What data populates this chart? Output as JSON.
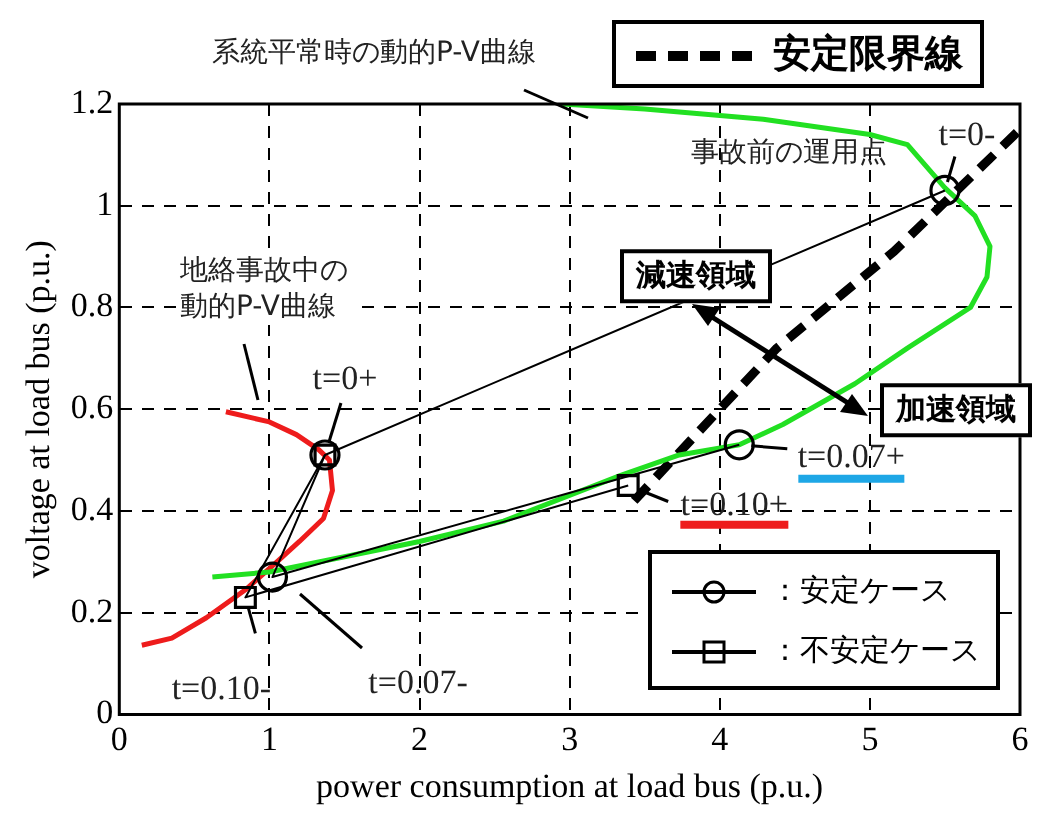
{
  "chart_data": {
    "type": "line",
    "xlabel": "power consumption at load bus (p.u.)",
    "ylabel": "voltage at load bus (p.u.)",
    "xlim": [
      0,
      6
    ],
    "xticks": [
      0,
      1,
      2,
      3,
      4,
      5,
      6
    ],
    "ylim": [
      0,
      1.2
    ],
    "yticks": [
      0,
      0.2,
      0.4,
      0.6,
      0.8,
      1,
      1.2
    ],
    "grid": true,
    "legend": "top right",
    "series": [
      {
        "color": "#22e022",
        "x": [
          2.95,
          3.5,
          4.29,
          5.0,
          5.25,
          5.5,
          5.7,
          5.8,
          5.78,
          5.67,
          5.25,
          4.9,
          4.42,
          4.13,
          3.73,
          3.34,
          2.56,
          2.0,
          1.5,
          1.0,
          0.62
        ],
        "values": [
          1.2,
          1.19,
          1.17,
          1.14,
          1.12,
          1.035,
          0.98,
          0.92,
          0.86,
          0.8,
          0.72,
          0.65,
          0.57,
          0.53,
          0.51,
          0.47,
          0.38,
          0.34,
          0.31,
          0.28,
          0.27
        ]
      },
      {
        "color": "#ee1c1c",
        "x": [
          0.71,
          1.0,
          1.18,
          1.33,
          1.4,
          1.42,
          1.36,
          1.2,
          1.05,
          0.84,
          0.58,
          0.35,
          0.15
        ],
        "values": [
          0.595,
          0.575,
          0.55,
          0.52,
          0.5,
          0.44,
          0.385,
          0.34,
          0.3,
          0.245,
          0.19,
          0.15,
          0.136
        ]
      },
      {
        "name": "安定限界線",
        "color": "#000000",
        "line_style": "dashed",
        "marker": "none",
        "x": [
          3.43,
          4.38,
          5.16,
          6.0
        ],
        "values": [
          0.42,
          0.72,
          0.91,
          1.15
        ]
      },
      {
        "name": "：安定ケース",
        "color": "#000000",
        "marker": "circle",
        "x": [
          5.5,
          1.37,
          1.02,
          4.13
        ],
        "values": [
          1.03,
          0.51,
          0.27,
          0.53
        ]
      },
      {
        "name": "：不安定ケース",
        "color": "#000000",
        "marker": "square",
        "x": [
          1.37,
          0.84,
          3.39
        ],
        "values": [
          0.51,
          0.23,
          0.45
        ]
      }
    ],
    "annotations": [
      "系統平常時の動的P-V曲線",
      "地絡事故中の動的P-V曲線",
      {
        "text": "t=0-",
        "x": 5.5,
        "y": 1.03
      },
      {
        "text": "事故前の運用点",
        "x": 5.5,
        "y": 1.03
      },
      {
        "text": "t=0+",
        "x": 1.37,
        "y": 0.51
      },
      {
        "text": "t=0.10-",
        "x": 0.84,
        "y": 0.23
      },
      "t=0.07-",
      {
        "text": "t=0.07+",
        "x": 4.13,
        "y": 0.53
      },
      {
        "text": "t=0.10+",
        "x": 3.39,
        "y": 0.45
      },
      "減速領域",
      "加速領域"
    ]
  }
}
